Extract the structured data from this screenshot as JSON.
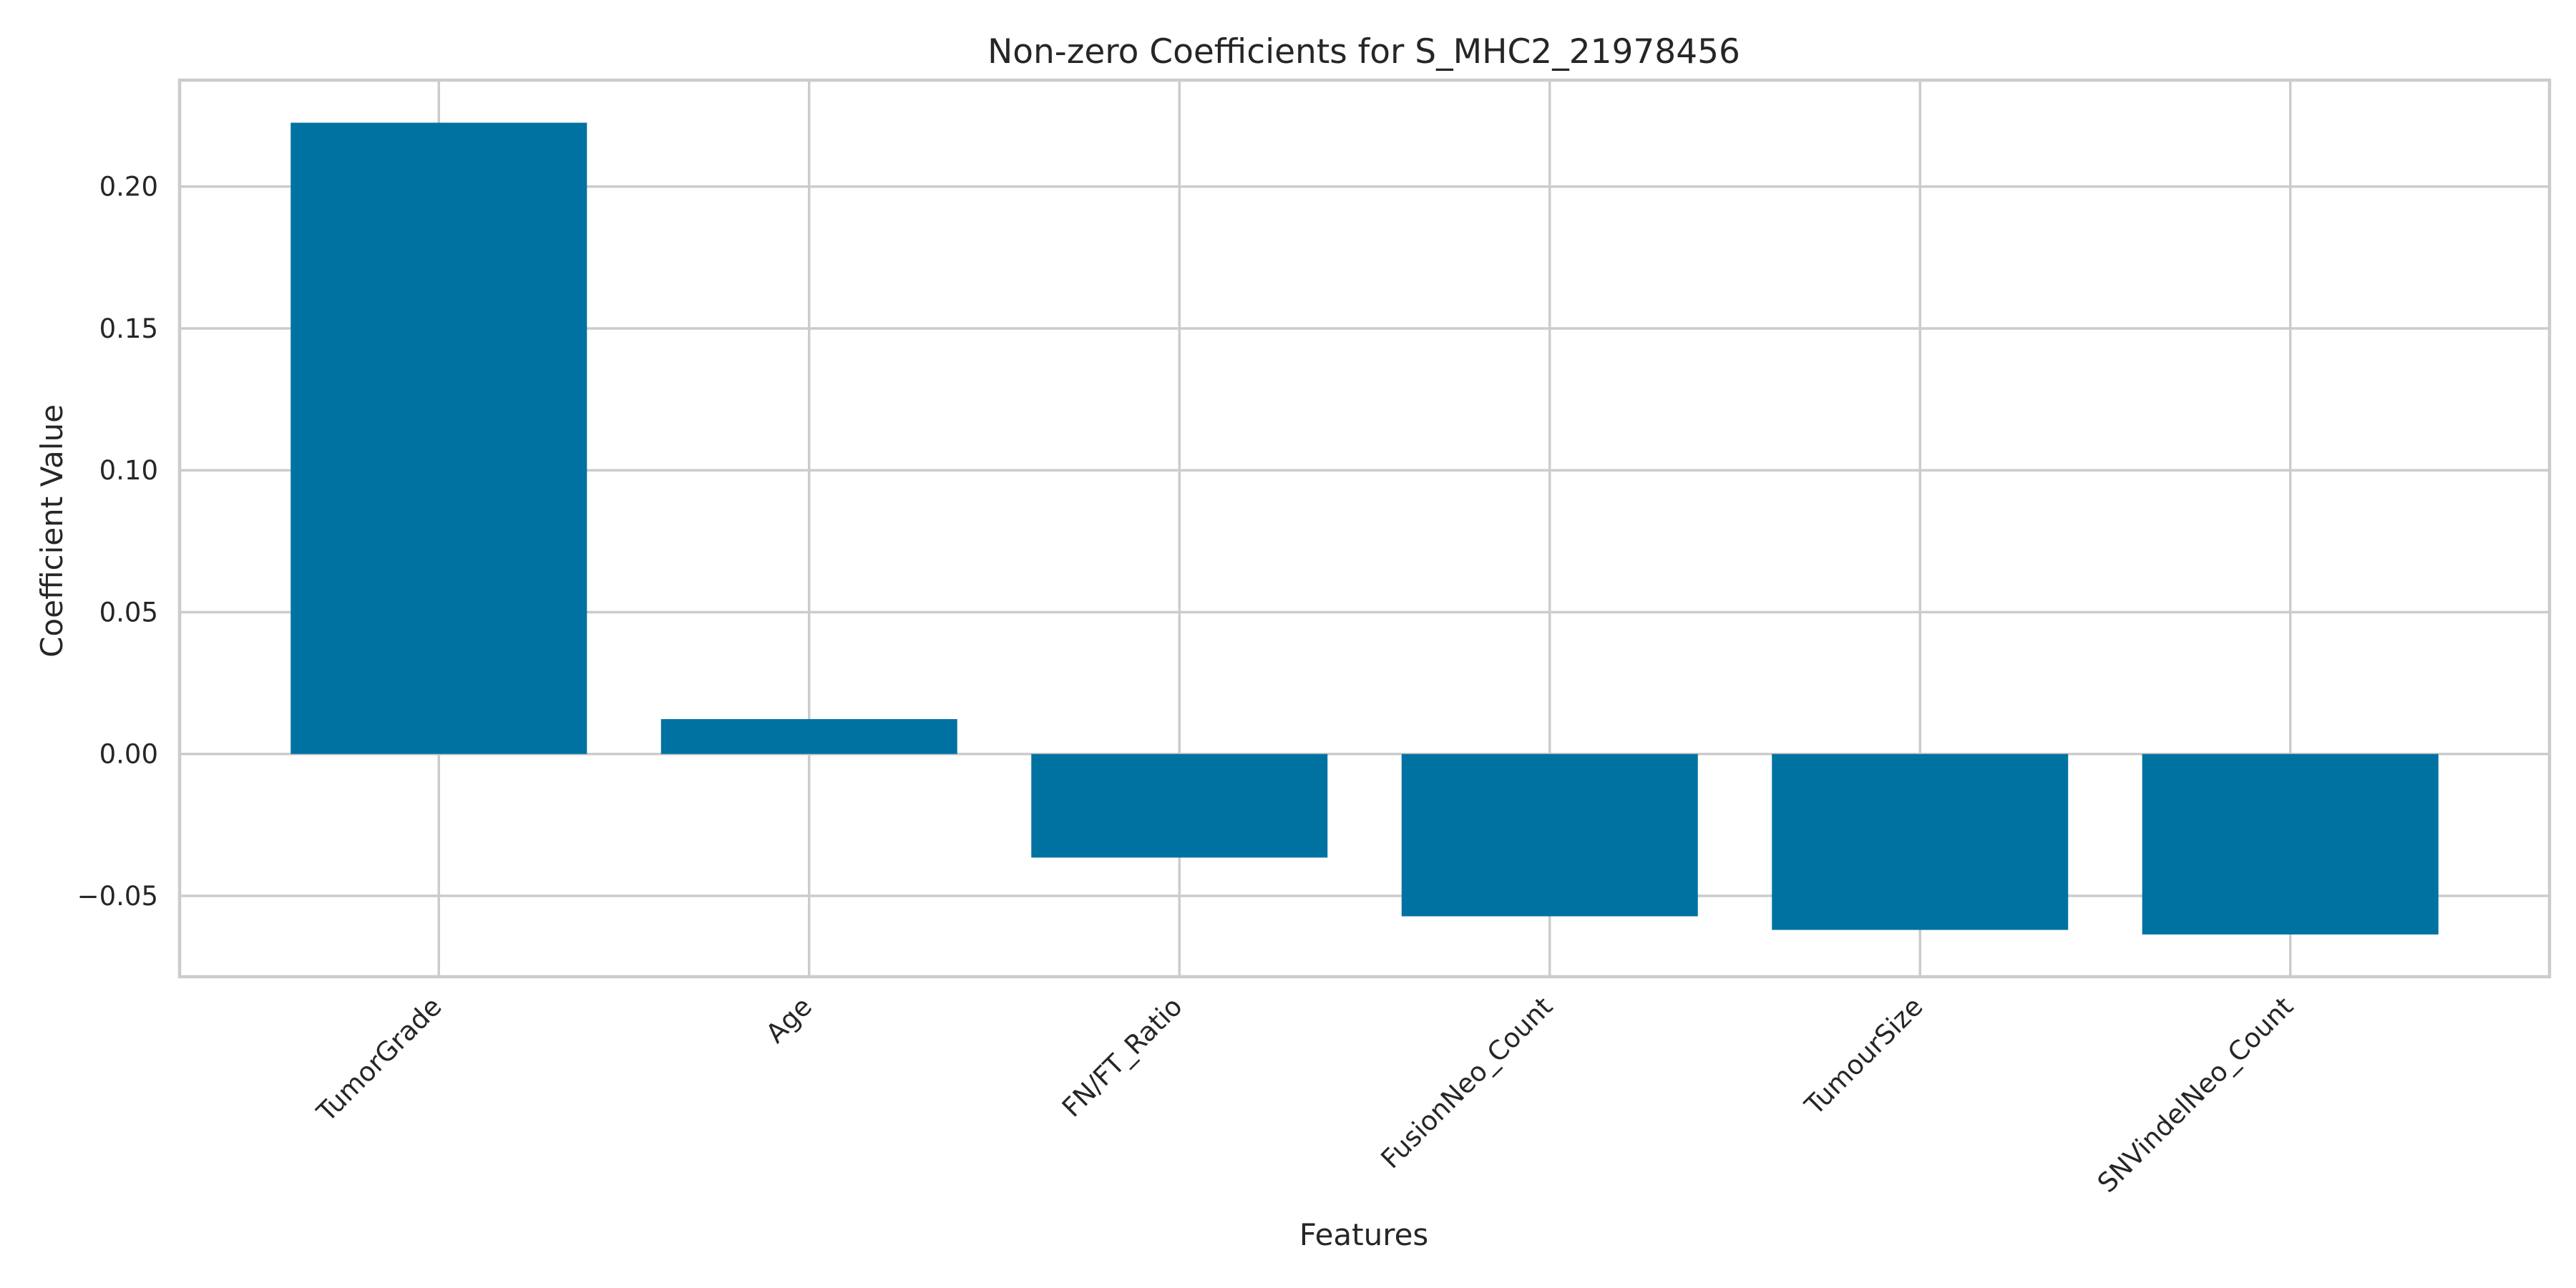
{
  "chart_data": {
    "type": "bar",
    "title": "Non-zero Coefficients for S_MHC2_21978456",
    "xlabel": "Features",
    "ylabel": "Coefficient Value",
    "categories": [
      "TumorGrade",
      "Age",
      "FN/FT_Ratio",
      "FusionNeo_Count",
      "TumourSize",
      "SNVindelNeo_Count"
    ],
    "values": [
      0.2225,
      0.0123,
      -0.0365,
      -0.0572,
      -0.062,
      -0.0636
    ],
    "ylim": [
      -0.0785,
      0.2375
    ],
    "yticks": [
      -0.05,
      0.0,
      0.05,
      0.1,
      0.15,
      0.2
    ],
    "ytick_labels": [
      "−0.05",
      "0.00",
      "0.05",
      "0.10",
      "0.15",
      "0.20"
    ],
    "grid": true,
    "legend": "none",
    "colors": {
      "bar": "#0072a2",
      "grid": "#cccccc",
      "frame": "#cccccc",
      "text": "#262626"
    }
  }
}
